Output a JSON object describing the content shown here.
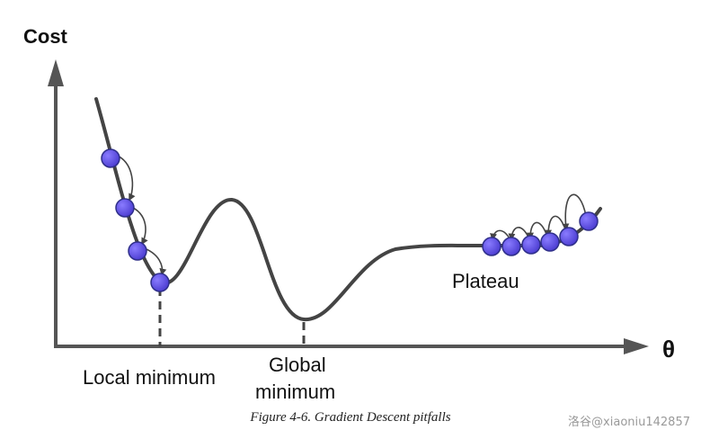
{
  "diagram": {
    "y_axis_label": "Cost",
    "x_axis_label": "θ",
    "annotations": {
      "local_minimum": "Local minimum",
      "global_minimum_line1": "Global",
      "global_minimum_line2": "minimum",
      "plateau": "Plateau"
    },
    "caption": "Figure 4-6. Gradient Descent pitfalls",
    "colors": {
      "curve": "#444444",
      "axis": "#555555",
      "ball_fill": "#5b4de0",
      "ball_stroke": "#2f2f8a",
      "arrow": "#444444"
    },
    "left_descent_steps": 4,
    "plateau_steps": 6
  },
  "watermark": "洛谷@xiaoniu142857"
}
